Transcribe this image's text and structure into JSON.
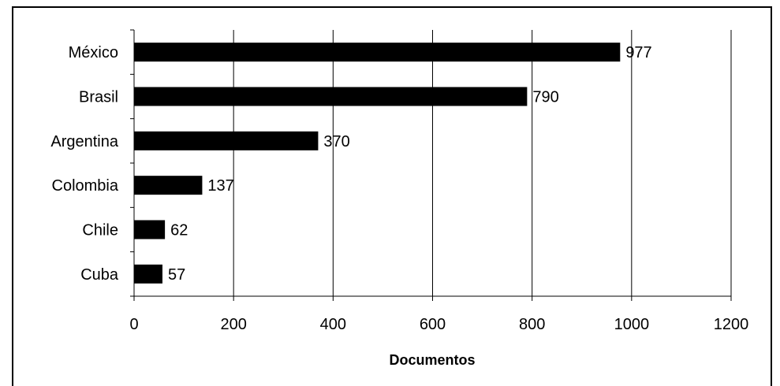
{
  "chart_data": {
    "type": "bar",
    "orientation": "horizontal",
    "categories": [
      "México",
      "Brasil",
      "Argentina",
      "Colombia",
      "Chile",
      "Cuba"
    ],
    "values": [
      977,
      790,
      370,
      137,
      62,
      57
    ],
    "data_labels": [
      "977",
      "790",
      "370",
      "137",
      "62",
      "57"
    ],
    "xlabel": "Documentos",
    "xlim": [
      0,
      1200
    ],
    "xticks": [
      0,
      200,
      400,
      600,
      800,
      1000,
      1200
    ],
    "xtick_labels": [
      "0",
      "200",
      "400",
      "600",
      "800",
      "1000",
      "1200"
    ],
    "grid": "vertical",
    "legend": "none",
    "bar_color": "#000000"
  }
}
